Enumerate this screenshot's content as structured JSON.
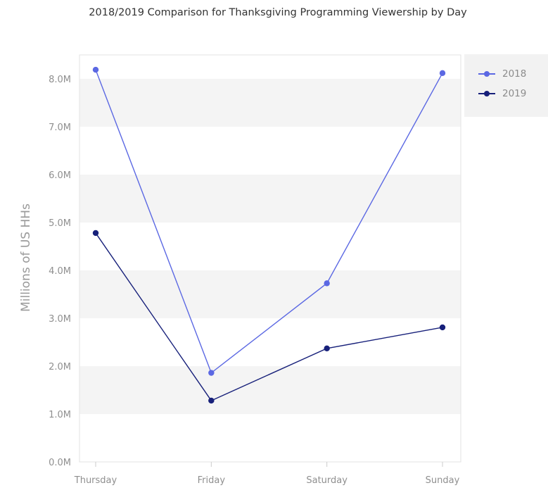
{
  "chart_data": {
    "type": "line",
    "title": "2018/2019 Comparison for Thanksgiving Programming Viewership by Day",
    "xlabel": "",
    "ylabel": "Millions of US HHs",
    "categories": [
      "Thursday",
      "Friday",
      "Saturday",
      "Sunday"
    ],
    "y_ticks": [
      "0.0M",
      "1.0M",
      "2.0M",
      "3.0M",
      "4.0M",
      "5.0M",
      "6.0M",
      "7.0M",
      "8.0M"
    ],
    "ylim": [
      0,
      8.5
    ],
    "y_units": "millions",
    "grid": "alternating horizontal bands",
    "legend_position": "top-right",
    "series": [
      {
        "name": "2018",
        "color": "#5b68e3",
        "values": [
          8.19,
          1.86,
          3.73,
          8.12
        ]
      },
      {
        "name": "2019",
        "color": "#17207a",
        "values": [
          4.78,
          1.28,
          2.37,
          2.81
        ]
      }
    ]
  }
}
